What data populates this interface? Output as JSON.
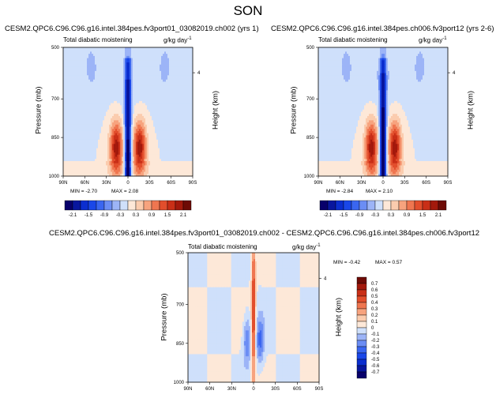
{
  "page": {
    "title": "SON"
  },
  "chart_data": [
    {
      "type": "heatmap",
      "title": "CESM2.QPC6.C96.C96.g16.intel.384pes.fv3port01_03082019.ch002 (yrs 1)",
      "subtitle_left": "Total diabatic moistening",
      "units": "g/kg day",
      "units_sup": "-1",
      "xlabel": "",
      "ylabel": "Pressure (mb)",
      "y2label": "Height (km)",
      "x_ticks": [
        "90N",
        "60N",
        "30N",
        "0",
        "30S",
        "60S",
        "90S"
      ],
      "y_ticks": [
        500,
        700,
        850,
        1000
      ],
      "y2_ticks": [
        4
      ],
      "min_label": "MIN = -2.70",
      "max_label": "MAX = 2.08",
      "min": -2.7,
      "max": 2.08,
      "colorbar_orientation": "horizontal",
      "colorbar_ticks": [
        "-2.1",
        "-1.5",
        "-0.9",
        "-0.3",
        "0.3",
        "0.9",
        "1.5",
        "2.1"
      ],
      "levels": [
        -2.1,
        -1.8,
        -1.5,
        -1.2,
        -0.9,
        -0.6,
        -0.3,
        0,
        0.3,
        0.6,
        0.9,
        1.2,
        1.5,
        1.8,
        2.1
      ],
      "core_value": -2.7
    },
    {
      "type": "heatmap",
      "title": "CESM2.QPC6.C96.C96.g16.intel.384pes.ch006.fv3port12 (yrs 2-6)",
      "subtitle_left": "Total diabatic moistening",
      "units": "g/kg day",
      "units_sup": "-1",
      "xlabel": "",
      "ylabel": "Pressure (mb)",
      "y2label": "Height (km)",
      "x_ticks": [
        "90N",
        "60N",
        "30N",
        "0",
        "30S",
        "60S",
        "90S"
      ],
      "y_ticks": [
        500,
        700,
        850,
        1000
      ],
      "y2_ticks": [
        4
      ],
      "min_label": "MIN = -2.84",
      "max_label": "MAX = 2.10",
      "min": -2.84,
      "max": 2.1,
      "colorbar_orientation": "horizontal",
      "colorbar_ticks": [
        "-2.1",
        "-1.5",
        "-0.9",
        "-0.3",
        "0.3",
        "0.9",
        "1.5",
        "2.1"
      ],
      "levels": [
        -2.1,
        -1.8,
        -1.5,
        -1.2,
        -0.9,
        -0.6,
        -0.3,
        0,
        0.3,
        0.6,
        0.9,
        1.2,
        1.5,
        1.8,
        2.1
      ],
      "core_value": -2.84
    },
    {
      "type": "heatmap",
      "title": "CESM2.QPC6.C96.C96.g16.intel.384pes.fv3port01_03082019.ch002 - CESM2.QPC6.C96.C96.g16.intel.384pes.ch006.fv3port12",
      "subtitle_left": "Total diabatic moistening",
      "units": "g/kg day",
      "units_sup": "-1",
      "xlabel": "",
      "ylabel": "Pressure (mb)",
      "y2label": "Height (km)",
      "x_ticks": [
        "90N",
        "60N",
        "30N",
        "0",
        "30S",
        "60S",
        "90S"
      ],
      "y_ticks": [
        500,
        700,
        850,
        1000
      ],
      "y2_ticks": [
        4
      ],
      "min_label": "MIN = -0.42",
      "max_label": "MAX =  0.57",
      "min": -0.42,
      "max": 0.57,
      "colorbar_orientation": "vertical",
      "colorbar_ticks": [
        "0.7",
        "0.6",
        "0.5",
        "0.4",
        "0.3",
        "0.2",
        "0.1",
        "0",
        "-0.1",
        "-0.2",
        "-0.3",
        "-0.4",
        "-0.5",
        "-0.6",
        "-0.7"
      ],
      "levels": [
        -0.7,
        -0.6,
        -0.5,
        -0.4,
        -0.3,
        -0.2,
        -0.1,
        0,
        0.1,
        0.2,
        0.3,
        0.4,
        0.5,
        0.6,
        0.7
      ],
      "core_value": 0.57
    }
  ],
  "colors": {
    "blues": [
      "#08006b",
      "#08169e",
      "#0b2ecf",
      "#1a47e8",
      "#3a66f0",
      "#6b8df4",
      "#9cb4f7",
      "#cfe0fb"
    ],
    "reds": [
      "#fde8d8",
      "#fbccae",
      "#f7a37e",
      "#ef7650",
      "#e24e2c",
      "#c92f17",
      "#a3190c",
      "#6e0b06"
    ]
  }
}
